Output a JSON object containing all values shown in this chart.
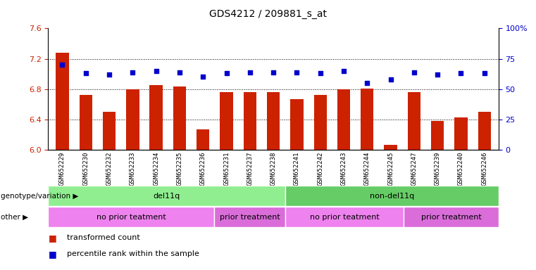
{
  "title": "GDS4212 / 209881_s_at",
  "samples": [
    "GSM652229",
    "GSM652230",
    "GSM652232",
    "GSM652233",
    "GSM652234",
    "GSM652235",
    "GSM652236",
    "GSM652231",
    "GSM652237",
    "GSM652238",
    "GSM652241",
    "GSM652242",
    "GSM652243",
    "GSM652244",
    "GSM652245",
    "GSM652247",
    "GSM652239",
    "GSM652240",
    "GSM652246"
  ],
  "bar_values": [
    7.28,
    6.72,
    6.5,
    6.8,
    6.85,
    6.83,
    6.27,
    6.76,
    6.76,
    6.76,
    6.67,
    6.72,
    6.8,
    6.81,
    6.07,
    6.76,
    6.38,
    6.43,
    6.5
  ],
  "dot_values": [
    70,
    63,
    62,
    64,
    65,
    64,
    60,
    63,
    64,
    64,
    64,
    63,
    65,
    55,
    58,
    64,
    62,
    63,
    63
  ],
  "ylim_left": [
    6.0,
    7.6
  ],
  "ylim_right": [
    0,
    100
  ],
  "bar_color": "#cc2200",
  "dot_color": "#0000cc",
  "ylabel_left_color": "#cc2200",
  "ylabel_right_color": "#0000cc",
  "genotype_groups": [
    {
      "label": "del11q",
      "start": 0,
      "end": 10,
      "color": "#90ee90"
    },
    {
      "label": "non-del11q",
      "start": 10,
      "end": 19,
      "color": "#66cc66"
    }
  ],
  "other_groups": [
    {
      "label": "no prior teatment",
      "start": 0,
      "end": 7,
      "color": "#ee82ee"
    },
    {
      "label": "prior treatment",
      "start": 7,
      "end": 10,
      "color": "#da6dda"
    },
    {
      "label": "no prior teatment",
      "start": 10,
      "end": 15,
      "color": "#ee82ee"
    },
    {
      "label": "prior treatment",
      "start": 15,
      "end": 19,
      "color": "#da6dda"
    }
  ],
  "legend_items": [
    {
      "label": "transformed count",
      "color": "#cc2200"
    },
    {
      "label": "percentile rank within the sample",
      "color": "#0000cc"
    }
  ],
  "genotype_label": "genotype/variation",
  "other_label": "other",
  "xtick_bg_color": "#c8c8c8",
  "grid_yticks": [
    6.4,
    6.8,
    7.2
  ]
}
